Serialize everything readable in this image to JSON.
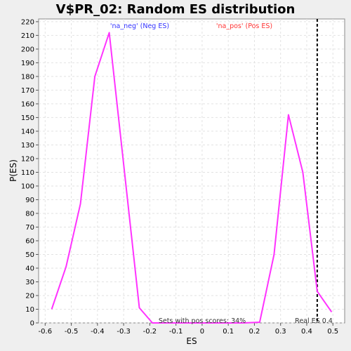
{
  "chart_data": {
    "type": "line",
    "title": "V$PR_02: Random ES distribution",
    "xlabel": "ES",
    "ylabel": "P(ES)",
    "xlim": [
      -0.625,
      0.545
    ],
    "ylim": [
      0,
      222
    ],
    "xticks": [
      -0.6,
      -0.5,
      -0.4,
      -0.3,
      -0.2,
      -0.1,
      0,
      0.1,
      0.2,
      0.3,
      0.4,
      0.5
    ],
    "xtick_labels": [
      "-0.6",
      "-0.5",
      "-0.4",
      "-0.3",
      "-0.2",
      "-0.1",
      "0",
      "0.1",
      "0.2",
      "0.3",
      "0.4",
      "0.5"
    ],
    "yticks": [
      0,
      10,
      20,
      30,
      40,
      50,
      60,
      70,
      80,
      90,
      100,
      110,
      120,
      130,
      140,
      150,
      160,
      170,
      180,
      190,
      200,
      210,
      220
    ],
    "ytick_labels": [
      "0",
      "10",
      "20",
      "30",
      "40",
      "50",
      "60",
      "70",
      "80",
      "90",
      "100",
      "110",
      "120",
      "130",
      "140",
      "150",
      "160",
      "170",
      "180",
      "190",
      "200",
      "210",
      "220"
    ],
    "grid": true,
    "series": [
      {
        "color": "#ff33ff",
        "x": [
          -0.575,
          -0.52,
          -0.465,
          -0.41,
          -0.355,
          -0.3,
          -0.24,
          -0.19,
          -0.1,
          0,
          0.1,
          0.16,
          0.22,
          0.275,
          0.33,
          0.385,
          0.44,
          0.495
        ],
        "y": [
          10,
          41,
          87,
          180,
          212,
          116,
          11,
          0,
          0,
          0,
          0,
          0,
          0.5,
          50,
          152,
          110,
          23,
          8
        ]
      }
    ],
    "reference_line": {
      "x": 0.44,
      "style": "dashed",
      "color": "#000000"
    },
    "annotations": {
      "neg_label": "'na_neg' (Neg ES)",
      "neg_color": "#3333ff",
      "pos_label": "'na_pos' (Pos ES)",
      "pos_color": "#ff3333",
      "sets_label": "Sets with pos scores: 34%",
      "real_es_label": "Real ES 0.4"
    }
  }
}
